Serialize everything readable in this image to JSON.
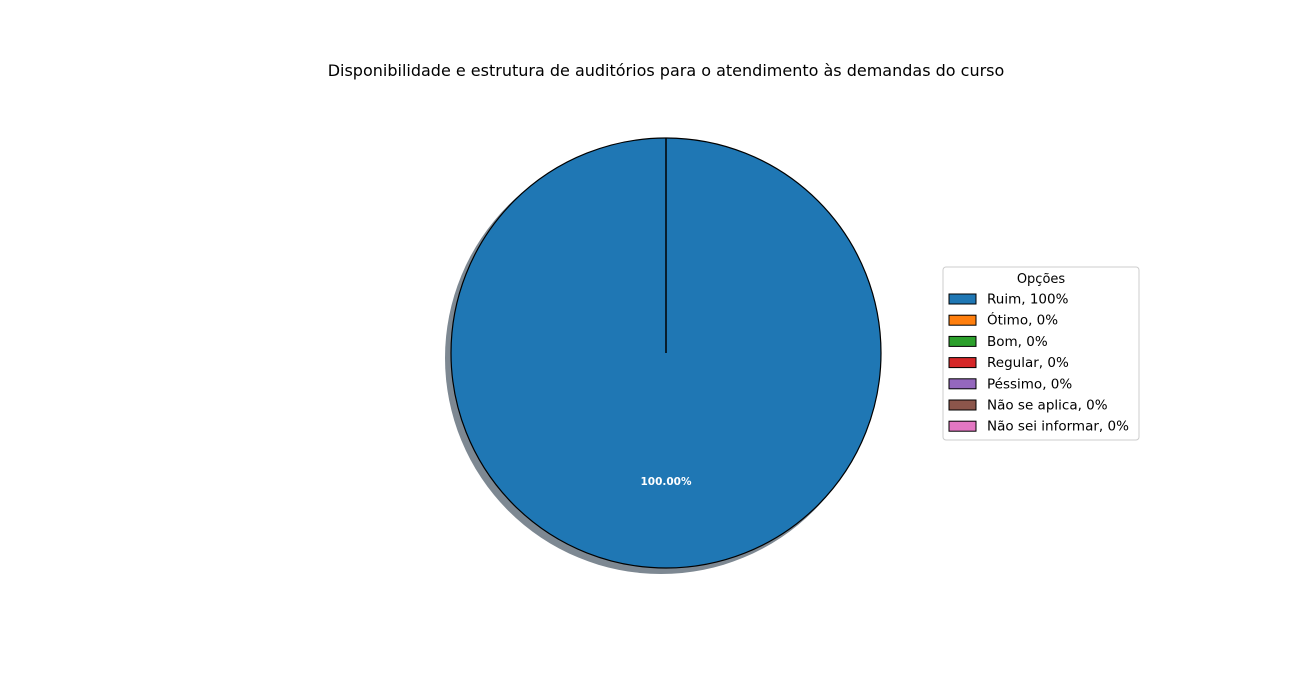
{
  "chart_data": {
    "type": "pie",
    "title": "Disponibilidade e estrutura de auditórios para o atendimento às demandas do curso",
    "categories": [
      "Ruim",
      "Ótimo",
      "Bom",
      "Regular",
      "Péssimo",
      "Não se aplica",
      "Não sei informar"
    ],
    "values": [
      100,
      0,
      0,
      0,
      0,
      0,
      0
    ],
    "colors": [
      "#1f77b4",
      "#ff7f0e",
      "#2ca02c",
      "#d62728",
      "#9467bd",
      "#8c564b",
      "#e377c2"
    ],
    "start_angle_deg": 90,
    "shadow": true,
    "slice_labels": [
      "100.00%"
    ],
    "legend": {
      "title": "Opções",
      "placement": "right",
      "entries": [
        "Ruim, 100%",
        "Ótimo, 0%",
        "Bom, 0%",
        "Regular, 0%",
        "Péssimo, 0%",
        "Não se aplica, 0%",
        "Não sei informar, 0%"
      ]
    }
  }
}
